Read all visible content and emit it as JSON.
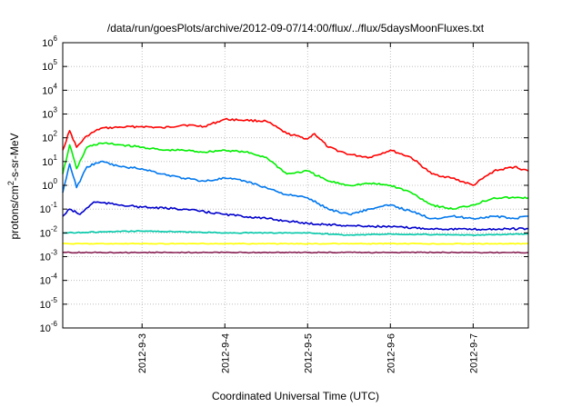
{
  "chart_data": {
    "type": "line",
    "title": "/data/run/goesPlots/archive/2012-09-07/14:00/flux/../flux/5daysMoonFluxes.txt",
    "xlabel": "Coordinated Universal Time (UTC)",
    "ylabel": {
      "prefix": "protons/cm",
      "superscript": "2",
      "suffix": "-s-sr-MeV"
    },
    "yscale": "log",
    "ylim": [
      1e-06,
      1000000.0
    ],
    "yticks": [
      {
        "base": "10",
        "exp": "-6",
        "value": 1e-06
      },
      {
        "base": "10",
        "exp": "-5",
        "value": 1e-05
      },
      {
        "base": "10",
        "exp": "-4",
        "value": 0.0001
      },
      {
        "base": "10",
        "exp": "-3",
        "value": 0.001
      },
      {
        "base": "10",
        "exp": "-2",
        "value": 0.01
      },
      {
        "base": "10",
        "exp": "-1",
        "value": 0.1
      },
      {
        "base": "10",
        "exp": "0",
        "value": 1
      },
      {
        "base": "10",
        "exp": "1",
        "value": 10
      },
      {
        "base": "10",
        "exp": "2",
        "value": 100
      },
      {
        "base": "10",
        "exp": "3",
        "value": 1000
      },
      {
        "base": "10",
        "exp": "4",
        "value": 10000
      },
      {
        "base": "10",
        "exp": "5",
        "value": 100000
      },
      {
        "base": "10",
        "exp": "6",
        "value": 1000000
      }
    ],
    "xlim": [
      "2012-09-02T01:00",
      "2012-09-07T16:00"
    ],
    "xticks": [
      {
        "label": "2012-9-3",
        "value": "2012-09-03T00:00"
      },
      {
        "label": "2012-9-4",
        "value": "2012-09-04T00:00"
      },
      {
        "label": "2012-9-5",
        "value": "2012-09-05T00:00"
      },
      {
        "label": "2012-9-6",
        "value": "2012-09-06T00:00"
      },
      {
        "label": "2012-9-7",
        "value": "2012-09-07T00:00"
      }
    ],
    "grid": true,
    "legend": "none",
    "series": [
      {
        "color": "#ff0000",
        "points": [
          [
            "2012-09-02T01:00",
            30
          ],
          [
            "2012-09-02T03:00",
            200
          ],
          [
            "2012-09-02T05:00",
            40
          ],
          [
            "2012-09-02T08:00",
            120
          ],
          [
            "2012-09-02T12:00",
            250
          ],
          [
            "2012-09-02T18:00",
            280
          ],
          [
            "2012-09-03T00:00",
            300
          ],
          [
            "2012-09-03T06:00",
            260
          ],
          [
            "2012-09-03T12:00",
            350
          ],
          [
            "2012-09-03T18:00",
            300
          ],
          [
            "2012-09-04T00:00",
            600
          ],
          [
            "2012-09-04T06:00",
            550
          ],
          [
            "2012-09-04T12:00",
            500
          ],
          [
            "2012-09-04T18:00",
            150
          ],
          [
            "2012-09-05T00:00",
            90
          ],
          [
            "2012-09-05T02:00",
            150
          ],
          [
            "2012-09-05T06:00",
            40
          ],
          [
            "2012-09-05T12:00",
            20
          ],
          [
            "2012-09-05T18:00",
            15
          ],
          [
            "2012-09-06T00:00",
            30
          ],
          [
            "2012-09-06T06:00",
            15
          ],
          [
            "2012-09-06T12:00",
            3
          ],
          [
            "2012-09-06T18:00",
            2
          ],
          [
            "2012-09-07T00:00",
            1
          ],
          [
            "2012-09-07T06:00",
            4
          ],
          [
            "2012-09-07T12:00",
            6
          ],
          [
            "2012-09-07T16:00",
            4
          ]
        ]
      },
      {
        "color": "#00ee00",
        "points": [
          [
            "2012-09-02T01:00",
            3
          ],
          [
            "2012-09-02T03:00",
            50
          ],
          [
            "2012-09-02T05:00",
            5
          ],
          [
            "2012-09-02T08:00",
            40
          ],
          [
            "2012-09-02T12:00",
            60
          ],
          [
            "2012-09-02T18:00",
            50
          ],
          [
            "2012-09-03T00:00",
            40
          ],
          [
            "2012-09-03T06:00",
            30
          ],
          [
            "2012-09-03T12:00",
            30
          ],
          [
            "2012-09-03T18:00",
            25
          ],
          [
            "2012-09-04T00:00",
            30
          ],
          [
            "2012-09-04T06:00",
            25
          ],
          [
            "2012-09-04T12:00",
            15
          ],
          [
            "2012-09-04T18:00",
            3
          ],
          [
            "2012-09-05T00:00",
            4
          ],
          [
            "2012-09-05T06:00",
            1.5
          ],
          [
            "2012-09-05T12:00",
            1
          ],
          [
            "2012-09-05T18:00",
            1.2
          ],
          [
            "2012-09-06T00:00",
            1
          ],
          [
            "2012-09-06T06:00",
            0.5
          ],
          [
            "2012-09-06T12:00",
            0.15
          ],
          [
            "2012-09-06T18:00",
            0.1
          ],
          [
            "2012-09-07T00:00",
            0.15
          ],
          [
            "2012-09-07T06:00",
            0.3
          ],
          [
            "2012-09-07T12:00",
            0.3
          ],
          [
            "2012-09-07T16:00",
            0.3
          ]
        ]
      },
      {
        "color": "#0077ee",
        "points": [
          [
            "2012-09-02T01:00",
            0.5
          ],
          [
            "2012-09-02T03:00",
            8
          ],
          [
            "2012-09-02T05:00",
            0.8
          ],
          [
            "2012-09-02T08:00",
            6
          ],
          [
            "2012-09-02T12:00",
            10
          ],
          [
            "2012-09-02T18:00",
            6
          ],
          [
            "2012-09-03T00:00",
            5
          ],
          [
            "2012-09-03T06:00",
            3
          ],
          [
            "2012-09-03T12:00",
            2
          ],
          [
            "2012-09-03T18:00",
            1.5
          ],
          [
            "2012-09-04T00:00",
            2
          ],
          [
            "2012-09-04T06:00",
            1.5
          ],
          [
            "2012-09-04T12:00",
            0.8
          ],
          [
            "2012-09-04T18:00",
            0.4
          ],
          [
            "2012-09-05T00:00",
            0.3
          ],
          [
            "2012-09-05T06:00",
            0.1
          ],
          [
            "2012-09-05T12:00",
            0.06
          ],
          [
            "2012-09-05T18:00",
            0.1
          ],
          [
            "2012-09-06T00:00",
            0.15
          ],
          [
            "2012-09-06T06:00",
            0.08
          ],
          [
            "2012-09-06T12:00",
            0.04
          ],
          [
            "2012-09-06T18:00",
            0.05
          ],
          [
            "2012-09-07T00:00",
            0.04
          ],
          [
            "2012-09-07T06:00",
            0.05
          ],
          [
            "2012-09-07T12:00",
            0.04
          ],
          [
            "2012-09-07T16:00",
            0.05
          ]
        ]
      },
      {
        "color": "#0000cc",
        "points": [
          [
            "2012-09-02T01:00",
            0.05
          ],
          [
            "2012-09-02T03:00",
            0.1
          ],
          [
            "2012-09-02T06:00",
            0.06
          ],
          [
            "2012-09-02T10:00",
            0.2
          ],
          [
            "2012-09-02T18:00",
            0.15
          ],
          [
            "2012-09-03T00:00",
            0.12
          ],
          [
            "2012-09-03T12:00",
            0.1
          ],
          [
            "2012-09-04T00:00",
            0.06
          ],
          [
            "2012-09-04T12:00",
            0.04
          ],
          [
            "2012-09-05T00:00",
            0.025
          ],
          [
            "2012-09-05T12:00",
            0.02
          ],
          [
            "2012-09-06T00:00",
            0.018
          ],
          [
            "2012-09-06T12:00",
            0.015
          ],
          [
            "2012-09-07T00:00",
            0.014
          ],
          [
            "2012-09-07T16:00",
            0.015
          ]
        ]
      },
      {
        "color": "#00c8a8",
        "points": [
          [
            "2012-09-02T01:00",
            0.01
          ],
          [
            "2012-09-03T00:00",
            0.012
          ],
          [
            "2012-09-04T00:00",
            0.01
          ],
          [
            "2012-09-05T00:00",
            0.01
          ],
          [
            "2012-09-05T12:00",
            0.008
          ],
          [
            "2012-09-06T00:00",
            0.009
          ],
          [
            "2012-09-07T00:00",
            0.008
          ],
          [
            "2012-09-07T16:00",
            0.009
          ]
        ]
      },
      {
        "color": "#ffff00",
        "points": [
          [
            "2012-09-02T01:00",
            0.0035
          ],
          [
            "2012-09-03T00:00",
            0.0035
          ],
          [
            "2012-09-04T00:00",
            0.0035
          ],
          [
            "2012-09-05T00:00",
            0.0035
          ],
          [
            "2012-09-06T00:00",
            0.0035
          ],
          [
            "2012-09-07T00:00",
            0.0035
          ],
          [
            "2012-09-07T16:00",
            0.0035
          ]
        ]
      },
      {
        "color": "#882255",
        "points": [
          [
            "2012-09-02T01:00",
            0.0015
          ],
          [
            "2012-09-03T00:00",
            0.0015
          ],
          [
            "2012-09-04T00:00",
            0.0015
          ],
          [
            "2012-09-05T00:00",
            0.0015
          ],
          [
            "2012-09-06T00:00",
            0.0015
          ],
          [
            "2012-09-07T00:00",
            0.0015
          ],
          [
            "2012-09-07T16:00",
            0.0015
          ]
        ]
      }
    ]
  }
}
